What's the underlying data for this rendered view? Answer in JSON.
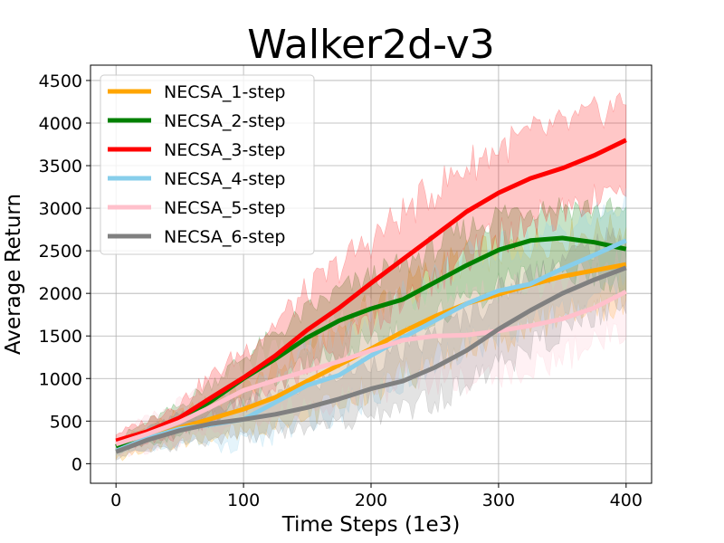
{
  "chart_data": {
    "type": "line",
    "title": "Walker2d-v3",
    "xlabel": "Time Steps (1e3)",
    "ylabel": "Average Return",
    "xlim": [
      -20,
      420
    ],
    "ylim": [
      -230,
      4680
    ],
    "xticks": [
      0,
      100,
      200,
      300,
      400
    ],
    "yticks": [
      0,
      500,
      1000,
      1500,
      2000,
      2500,
      3000,
      3500,
      4000,
      4500
    ],
    "grid": true,
    "legend_position": "upper-left",
    "x": [
      0,
      25,
      50,
      75,
      100,
      125,
      150,
      175,
      200,
      225,
      250,
      275,
      300,
      325,
      350,
      375,
      400
    ],
    "series": [
      {
        "name": "NECSA_1-step",
        "color": "#FFA500",
        "values": [
          150,
          300,
          420,
          530,
          640,
          780,
          970,
          1160,
          1350,
          1550,
          1730,
          1880,
          1990,
          2100,
          2200,
          2270,
          2340
        ],
        "band": [
          120,
          160,
          200,
          260,
          300,
          380,
          450,
          520,
          580,
          620,
          650,
          650,
          620,
          580,
          560,
          540,
          520
        ]
      },
      {
        "name": "NECSA_2-step",
        "color": "#008000",
        "values": [
          200,
          370,
          510,
          740,
          1000,
          1230,
          1480,
          1680,
          1820,
          1930,
          2130,
          2330,
          2510,
          2620,
          2650,
          2600,
          2520
        ],
        "band": [
          100,
          150,
          200,
          260,
          300,
          340,
          380,
          420,
          450,
          480,
          500,
          500,
          500,
          480,
          460,
          480,
          500
        ]
      },
      {
        "name": "NECSA_3-step",
        "color": "#FF0000",
        "values": [
          270,
          380,
          540,
          780,
          1010,
          1270,
          1570,
          1830,
          2120,
          2400,
          2680,
          2960,
          3180,
          3350,
          3470,
          3620,
          3800
        ],
        "band": [
          100,
          150,
          220,
          300,
          380,
          460,
          540,
          600,
          620,
          640,
          650,
          650,
          640,
          620,
          600,
          580,
          560
        ]
      },
      {
        "name": "NECSA_4-step",
        "color": "#87CEEB",
        "values": [
          150,
          300,
          410,
          460,
          520,
          720,
          920,
          1040,
          1270,
          1480,
          1680,
          1880,
          2030,
          2110,
          2290,
          2450,
          2620
        ],
        "band": [
          100,
          150,
          200,
          280,
          350,
          420,
          480,
          520,
          560,
          600,
          620,
          620,
          600,
          580,
          560,
          540,
          520
        ]
      },
      {
        "name": "NECSA_5-step",
        "color": "#FFC0CB",
        "values": [
          230,
          350,
          490,
          670,
          860,
          980,
          1090,
          1200,
          1330,
          1450,
          1500,
          1510,
          1560,
          1620,
          1700,
          1830,
          2020
        ],
        "band": [
          150,
          200,
          260,
          320,
          380,
          440,
          480,
          520,
          560,
          580,
          600,
          600,
          580,
          560,
          540,
          520,
          500
        ]
      },
      {
        "name": "NECSA_6-step",
        "color": "#808080",
        "values": [
          140,
          280,
          390,
          470,
          520,
          580,
          660,
          760,
          880,
          970,
          1130,
          1330,
          1580,
          1800,
          2000,
          2160,
          2300
        ],
        "band": [
          100,
          150,
          200,
          220,
          240,
          260,
          300,
          340,
          380,
          420,
          460,
          500,
          520,
          520,
          500,
          480,
          460
        ]
      }
    ]
  }
}
